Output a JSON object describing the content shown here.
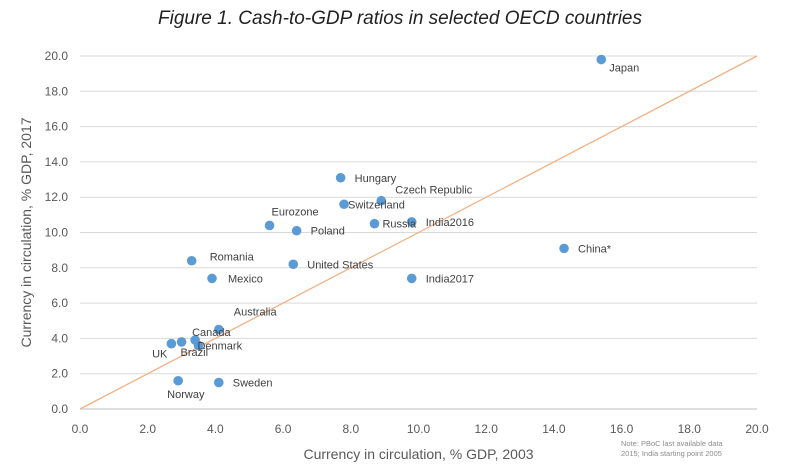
{
  "chart_data": {
    "type": "scatter",
    "title": "Figure 1. Cash-to-GDP ratios in selected OECD countries",
    "xlabel": "Currency in circulation, % GDP, 2003",
    "ylabel": "Currency in circulation, % GDP, 2017",
    "xlim": [
      0,
      20
    ],
    "ylim": [
      0,
      20
    ],
    "xticks": [
      "0.0",
      "2.0",
      "4.0",
      "6.0",
      "8.0",
      "10.0",
      "12.0",
      "14.0",
      "16.0",
      "18.0",
      "20.0"
    ],
    "yticks": [
      "0.0",
      "2.0",
      "4.0",
      "6.0",
      "8.0",
      "10.0",
      "12.0",
      "14.0",
      "16.0",
      "18.0",
      "20.0"
    ],
    "grid": "horizontal",
    "reference_line": "45-degree line (y = x)",
    "note_lines": [
      "Note: PBoC last available data",
      "2015; India starting point 2005"
    ],
    "points": [
      {
        "label": "Japan",
        "x": 15.4,
        "y": 19.8
      },
      {
        "label": "Hungary",
        "x": 7.7,
        "y": 13.1
      },
      {
        "label": "Czech Republic",
        "x": 8.9,
        "y": 11.8
      },
      {
        "label": "Switzerland",
        "x": 7.8,
        "y": 11.6
      },
      {
        "label": "India2016",
        "x": 9.8,
        "y": 10.6
      },
      {
        "label": "Russia",
        "x": 8.7,
        "y": 10.5
      },
      {
        "label": "Eurozone",
        "x": 5.6,
        "y": 10.4
      },
      {
        "label": "Poland",
        "x": 6.4,
        "y": 10.1
      },
      {
        "label": "China*",
        "x": 14.3,
        "y": 9.1
      },
      {
        "label": "Romania",
        "x": 3.3,
        "y": 8.4
      },
      {
        "label": "United States",
        "x": 6.3,
        "y": 8.2
      },
      {
        "label": "Mexico",
        "x": 3.9,
        "y": 7.4
      },
      {
        "label": "India2017",
        "x": 9.8,
        "y": 7.4
      },
      {
        "label": "Australia",
        "x": 4.1,
        "y": 4.5
      },
      {
        "label": "Canada",
        "x": 3.4,
        "y": 3.9
      },
      {
        "label": "Denmark",
        "x": 3.5,
        "y": 3.6
      },
      {
        "label": "Brazil",
        "x": 3.0,
        "y": 3.8
      },
      {
        "label": "UK",
        "x": 2.7,
        "y": 3.7
      },
      {
        "label": "Norway",
        "x": 2.9,
        "y": 1.6
      },
      {
        "label": "Sweden",
        "x": 4.1,
        "y": 1.5
      }
    ]
  },
  "colors": {
    "marker": "#5b9bd5",
    "reference_line": "#f4b183",
    "grid": "#d9d9d9",
    "axis": "#bfbfbf"
  }
}
